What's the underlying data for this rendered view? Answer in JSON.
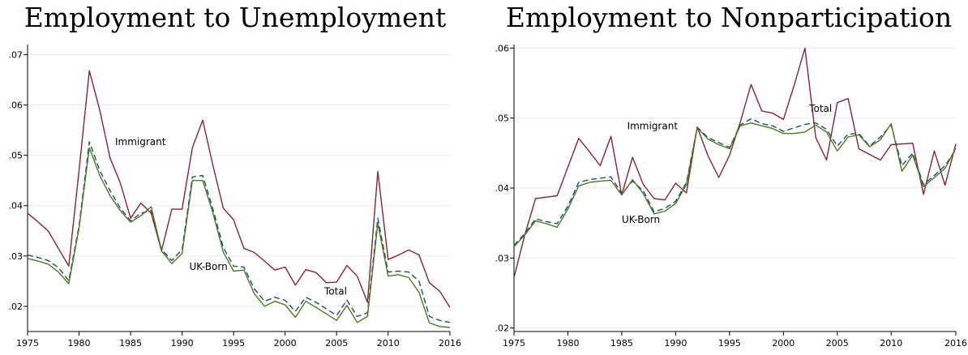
{
  "chart_data": [
    {
      "type": "line",
      "title": "Employment to Unemployment",
      "xlabel": "",
      "ylabel": "",
      "xlim": [
        1975,
        2016
      ],
      "ylim": [
        0.015,
        0.072
      ],
      "xticks": [
        "1975",
        "1980",
        "1985",
        "1990",
        "1995",
        "2000",
        "2005",
        "2010",
        "2016"
      ],
      "xtick_values": [
        1975,
        1980,
        1985,
        1990,
        1995,
        2000,
        2005,
        2010,
        2016
      ],
      "yticks": [
        ".02",
        ".03",
        ".04",
        ".05",
        ".06",
        ".07"
      ],
      "ytick_values": [
        0.02,
        0.03,
        0.04,
        0.05,
        0.06,
        0.07
      ],
      "grid": "horizontal",
      "x": [
        1975,
        1976,
        1977,
        1978,
        1979,
        1980,
        1981,
        1982,
        1983,
        1984,
        1985,
        1986,
        1987,
        1988,
        1989,
        1990,
        1991,
        1992,
        1993,
        1994,
        1995,
        1996,
        1997,
        1998,
        1999,
        2000,
        2001,
        2002,
        2003,
        2004,
        2005,
        2006,
        2007,
        2008,
        2009,
        2010,
        2011,
        2012,
        2013,
        2014,
        2015,
        2016
      ],
      "series": [
        {
          "name": "Immigrant",
          "color": "#8b2332",
          "style": "solid",
          "values": [
            0.0385,
            0.0368,
            0.035,
            0.0315,
            0.028,
            0.047,
            0.0668,
            0.059,
            0.0495,
            0.0445,
            0.0375,
            0.0405,
            0.0385,
            0.031,
            0.0393,
            0.0393,
            0.0515,
            0.057,
            0.048,
            0.0395,
            0.0372,
            0.0315,
            0.0307,
            0.029,
            0.0272,
            0.0278,
            0.0242,
            0.0273,
            0.0267,
            0.0247,
            0.0248,
            0.0281,
            0.026,
            0.0208,
            0.0468,
            0.0293,
            0.0302,
            0.0312,
            0.0302,
            0.0247,
            0.023,
            0.0198
          ]
        },
        {
          "name": "Total",
          "color": "#1b4f72",
          "style": "dashed",
          "values": [
            0.0302,
            0.0297,
            0.0291,
            0.0277,
            0.0251,
            0.036,
            0.0527,
            0.047,
            0.043,
            0.0395,
            0.037,
            0.0385,
            0.039,
            0.0313,
            0.0291,
            0.0313,
            0.0457,
            0.046,
            0.0393,
            0.0317,
            0.028,
            0.0278,
            0.0235,
            0.021,
            0.0218,
            0.0212,
            0.019,
            0.0218,
            0.0208,
            0.0195,
            0.0182,
            0.0212,
            0.018,
            0.0187,
            0.0375,
            0.0268,
            0.027,
            0.0268,
            0.025,
            0.018,
            0.0172,
            0.0168
          ]
        },
        {
          "name": "UK-Born",
          "color": "#4d7a1f",
          "style": "solid",
          "values": [
            0.0295,
            0.029,
            0.0284,
            0.0268,
            0.0245,
            0.0355,
            0.0515,
            0.046,
            0.042,
            0.039,
            0.0367,
            0.038,
            0.0398,
            0.031,
            0.0285,
            0.0305,
            0.045,
            0.045,
            0.0385,
            0.0308,
            0.027,
            0.0272,
            0.0225,
            0.02,
            0.021,
            0.0203,
            0.0178,
            0.021,
            0.0198,
            0.0185,
            0.0172,
            0.0202,
            0.0168,
            0.018,
            0.0365,
            0.026,
            0.0263,
            0.0257,
            0.0228,
            0.0167,
            0.016,
            0.0158
          ]
        }
      ],
      "labels": {
        "immigrant": "Immigrant",
        "uk_born": "UK-Born",
        "total": "Total"
      }
    },
    {
      "type": "line",
      "title": "Employment to Nonparticipation",
      "xlabel": "",
      "ylabel": "",
      "xlim": [
        1975,
        2016
      ],
      "ylim": [
        0.0195,
        0.0605
      ],
      "xticks": [
        "1975",
        "1980",
        "1985",
        "1990",
        "1995",
        "2000",
        "2005",
        "2010",
        "2016"
      ],
      "xtick_values": [
        1975,
        1980,
        1985,
        1990,
        1995,
        2000,
        2005,
        2010,
        2016
      ],
      "yticks": [
        ".02",
        ".03",
        ".04",
        ".05",
        ".06"
      ],
      "ytick_values": [
        0.02,
        0.03,
        0.04,
        0.05,
        0.06
      ],
      "grid": "horizontal",
      "x": [
        1975,
        1976,
        1977,
        1978,
        1979,
        1980,
        1981,
        1982,
        1983,
        1984,
        1985,
        1986,
        1987,
        1988,
        1989,
        1990,
        1991,
        1992,
        1993,
        1994,
        1995,
        1996,
        1997,
        1998,
        1999,
        2000,
        2001,
        2002,
        2003,
        2004,
        2005,
        2006,
        2007,
        2008,
        2009,
        2010,
        2011,
        2012,
        2013,
        2014,
        2015,
        2016
      ],
      "series": [
        {
          "name": "Immigrant",
          "color": "#8b2332",
          "style": "solid",
          "values": [
            0.0272,
            0.0333,
            0.0385,
            0.0387,
            0.0389,
            0.043,
            0.0471,
            0.0452,
            0.0432,
            0.0474,
            0.039,
            0.0444,
            0.0405,
            0.0385,
            0.0383,
            0.0407,
            0.0393,
            0.0487,
            0.0446,
            0.0415,
            0.0447,
            0.0494,
            0.0548,
            0.051,
            0.0507,
            0.0498,
            0.0547,
            0.06,
            0.0472,
            0.044,
            0.0522,
            0.0528,
            0.0456,
            0.0448,
            0.044,
            0.0462,
            0.0463,
            0.0464,
            0.0391,
            0.0453,
            0.0404,
            0.0463
          ]
        },
        {
          "name": "Total",
          "color": "#1b4f72",
          "style": "dashed",
          "values": [
            0.0318,
            0.0335,
            0.0356,
            0.0352,
            0.0349,
            0.0374,
            0.0408,
            0.0412,
            0.0414,
            0.0416,
            0.0392,
            0.041,
            0.0396,
            0.0366,
            0.0371,
            0.0381,
            0.0408,
            0.0487,
            0.0472,
            0.0465,
            0.0458,
            0.049,
            0.0499,
            0.0492,
            0.0489,
            0.0481,
            0.0486,
            0.0491,
            0.0493,
            0.0484,
            0.046,
            0.0477,
            0.0478,
            0.046,
            0.0473,
            0.049,
            0.0432,
            0.045,
            0.0405,
            0.0418,
            0.0432,
            0.0455
          ]
        },
        {
          "name": "UK-Born",
          "color": "#4d7a1f",
          "style": "solid",
          "values": [
            0.0316,
            0.0333,
            0.0353,
            0.0349,
            0.0344,
            0.037,
            0.0403,
            0.0408,
            0.041,
            0.0411,
            0.039,
            0.0412,
            0.0392,
            0.0363,
            0.0367,
            0.0378,
            0.0405,
            0.0486,
            0.047,
            0.0462,
            0.0456,
            0.0489,
            0.0493,
            0.0489,
            0.0485,
            0.0478,
            0.0478,
            0.048,
            0.049,
            0.048,
            0.0453,
            0.0473,
            0.0476,
            0.0459,
            0.0469,
            0.0492,
            0.0424,
            0.0447,
            0.0402,
            0.0415,
            0.0428,
            0.0457
          ]
        }
      ],
      "labels": {
        "immigrant": "Immigrant",
        "uk_born": "UK-Born",
        "total": "Total"
      }
    }
  ]
}
